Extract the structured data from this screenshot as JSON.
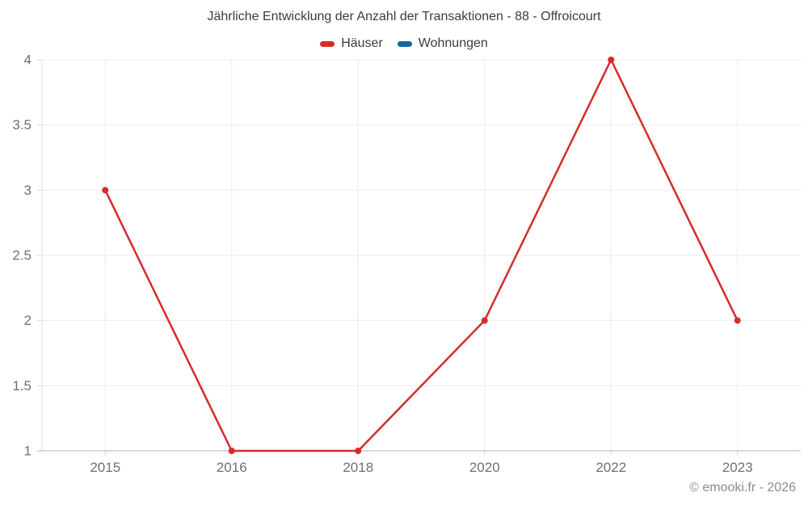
{
  "title": "Jährliche Entwicklung der Anzahl der Transaktionen - 88 - Offroicourt",
  "copyright": "© emooki.fr - 2026",
  "colors": {
    "title_text": "#3c3c3c",
    "legend_text": "#3c3c3c",
    "tick_text": "#707070",
    "copyright_text": "#8c8c8c",
    "grid": "#ececec",
    "x_axis_line": "#b0b0b0",
    "y_axis_line": "#e0e0e0",
    "tick_mark": "#d6d6d6",
    "background": "#ffffff"
  },
  "chart_data": {
    "type": "line",
    "title": "Jährliche Entwicklung der Anzahl der Transaktionen - 88 - Offroicourt",
    "categories": [
      "2015",
      "2016",
      "2018",
      "2020",
      "2022",
      "2023"
    ],
    "series": [
      {
        "name": "Häuser",
        "color": "#d62b2b",
        "values": [
          3,
          1,
          1,
          2,
          4,
          2
        ]
      },
      {
        "name": "Wohnungen",
        "color": "#11689f",
        "values": []
      }
    ],
    "xlabel": "",
    "ylabel": "",
    "ylim": [
      1,
      4
    ],
    "yticks": [
      1,
      1.5,
      2,
      2.5,
      3,
      3.5,
      4
    ],
    "grid": true,
    "legend_position": "top",
    "point_radius": 4,
    "line_width": 2.5
  }
}
